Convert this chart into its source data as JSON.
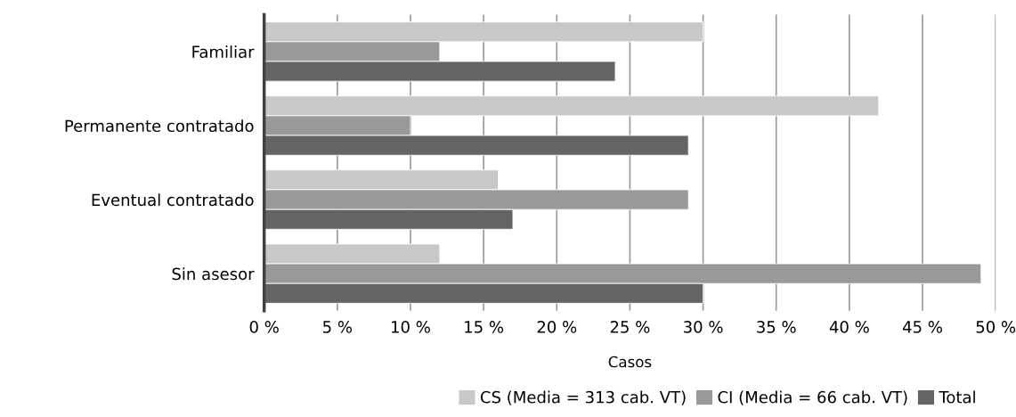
{
  "chart_data": {
    "type": "bar",
    "orientation": "horizontal",
    "xlabel": "Casos",
    "categories": [
      "Familiar",
      "Permanente contratado",
      "Eventual contratado",
      "Sin asesor"
    ],
    "series": [
      {
        "name": "CS (Media = 313 cab. VT)",
        "color": "#c8c8c8",
        "values": [
          30,
          42,
          16,
          12
        ]
      },
      {
        "name": "CI (Media = 66 cab. VT)",
        "color": "#999999",
        "values": [
          12,
          10,
          29,
          49
        ]
      },
      {
        "name": "Total",
        "color": "#646464",
        "values": [
          24,
          29,
          17,
          30
        ]
      }
    ],
    "xlim": [
      0,
      50
    ],
    "xticks": [
      {
        "value": 0,
        "label": "0 %"
      },
      {
        "value": 5,
        "label": "5 %"
      },
      {
        "value": 10,
        "label": "10 %"
      },
      {
        "value": 15,
        "label": "15 %"
      },
      {
        "value": 20,
        "label": "20 %"
      },
      {
        "value": 25,
        "label": "25 %"
      },
      {
        "value": 30,
        "label": "30 %"
      },
      {
        "value": 35,
        "label": "35 %"
      },
      {
        "value": 40,
        "label": "40 %"
      },
      {
        "value": 45,
        "label": "45 %"
      },
      {
        "value": 50,
        "label": "50 %"
      }
    ],
    "grid": "x",
    "legend": "bottom"
  }
}
